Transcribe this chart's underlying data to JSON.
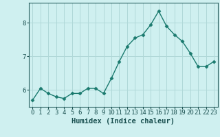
{
  "x": [
    0,
    1,
    2,
    3,
    4,
    5,
    6,
    7,
    8,
    9,
    10,
    11,
    12,
    13,
    14,
    15,
    16,
    17,
    18,
    19,
    20,
    21,
    22,
    23
  ],
  "y": [
    5.7,
    6.05,
    5.9,
    5.8,
    5.75,
    5.9,
    5.9,
    6.05,
    6.05,
    5.9,
    6.35,
    6.85,
    7.3,
    7.55,
    7.65,
    7.95,
    8.35,
    7.9,
    7.65,
    7.45,
    7.1,
    6.7,
    6.7,
    6.85
  ],
  "xlabel": "Humidex (Indice chaleur)",
  "ylim": [
    5.5,
    8.6
  ],
  "xlim": [
    -0.5,
    23.5
  ],
  "yticks": [
    6,
    7,
    8
  ],
  "xticks": [
    0,
    1,
    2,
    3,
    4,
    5,
    6,
    7,
    8,
    9,
    10,
    11,
    12,
    13,
    14,
    15,
    16,
    17,
    18,
    19,
    20,
    21,
    22,
    23
  ],
  "line_color": "#1a7a6e",
  "marker": "D",
  "marker_size": 2.5,
  "bg_color": "#cff0f0",
  "grid_color": "#b0d8d8",
  "axis_color": "#2a6060",
  "tick_label_color": "#1a5050",
  "xlabel_fontsize": 7.5,
  "tick_fontsize": 6.5,
  "line_width": 1.0
}
